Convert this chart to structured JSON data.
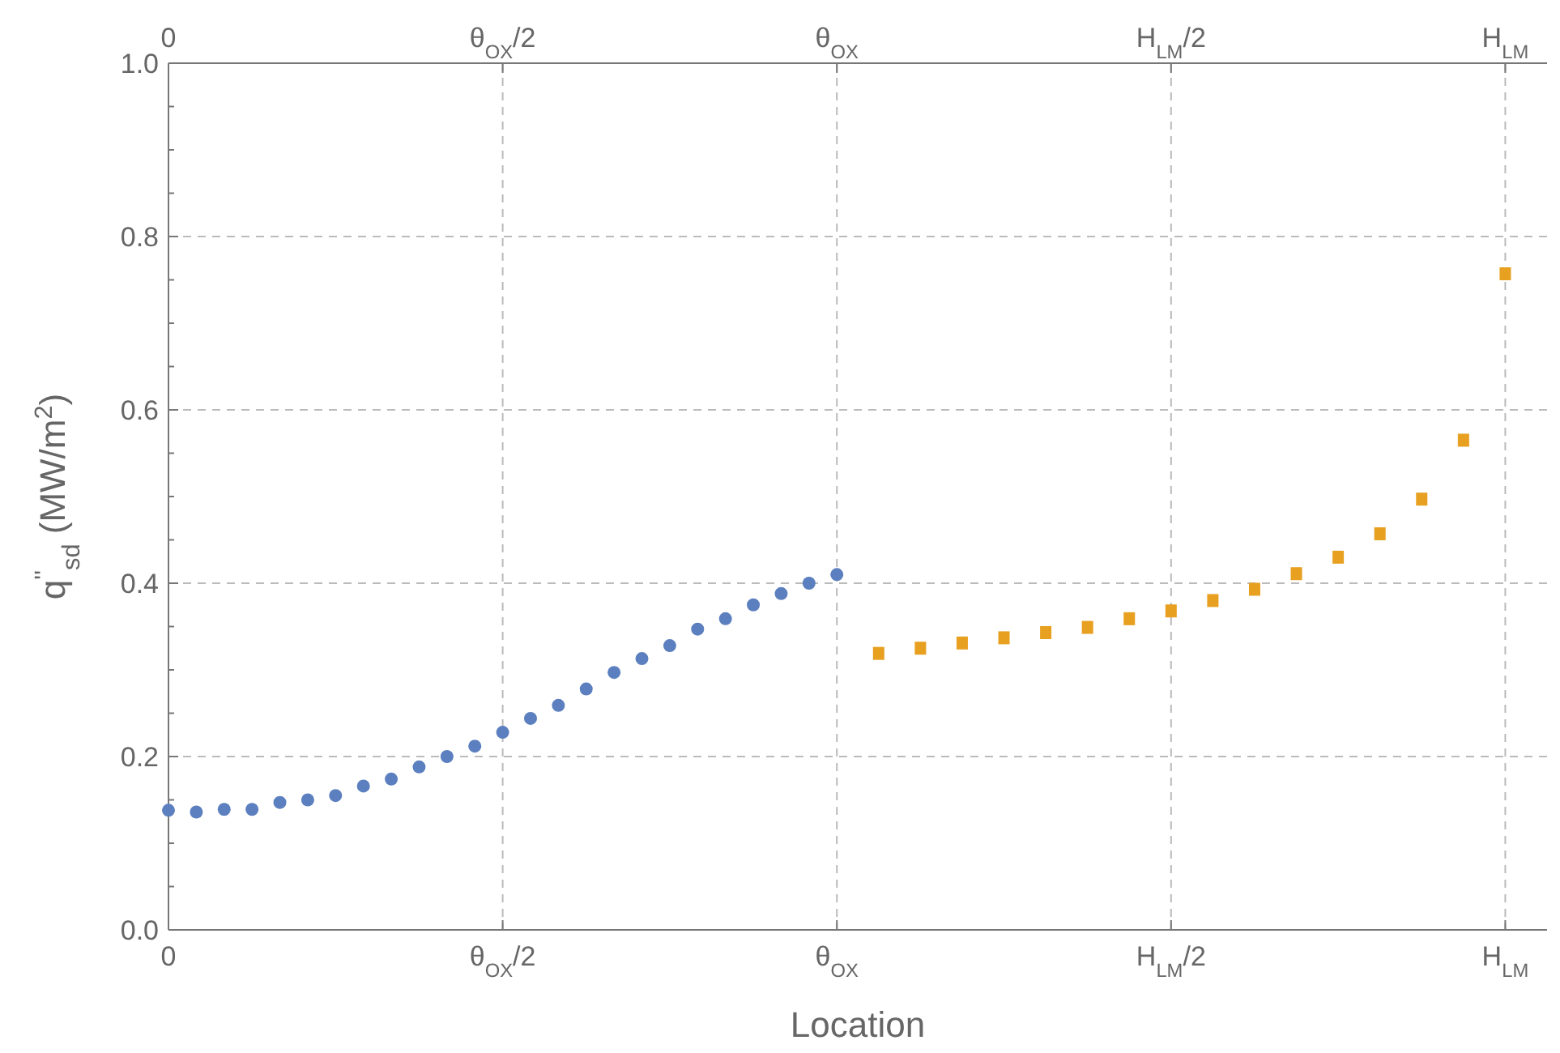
{
  "chart_data": {
    "type": "scatter",
    "xlabel": "Location",
    "ylabel": "q$^{''}$$_{sd}$ (MW/m$^{2}$)",
    "categories": [
      "0",
      null,
      null,
      null,
      null,
      null,
      null,
      null,
      null,
      null,
      null,
      null,
      null,
      null,
      null,
      null,
      null,
      null,
      null,
      null,
      null,
      null,
      null,
      null,
      "θ$_{OX}$/2",
      null,
      null,
      null,
      null,
      null,
      null,
      null,
      null,
      null,
      null,
      null,
      null,
      null,
      null,
      null,
      null,
      null,
      null,
      null,
      null,
      null,
      null,
      null,
      "θ$_{OX}$",
      null,
      null,
      null,
      null,
      null,
      null,
      null,
      null,
      null,
      null,
      null,
      null,
      null,
      null,
      null,
      null,
      null,
      null,
      null,
      null,
      null,
      null,
      null,
      "H$_{LM}$/2",
      null,
      null,
      null,
      null,
      null,
      null,
      null,
      null,
      null,
      null,
      null,
      null,
      null,
      null,
      null,
      null,
      null,
      null,
      null,
      null,
      null,
      null,
      null,
      "H$_{LM}$",
      null,
      null,
      null
    ],
    "ylim": [
      0,
      1
    ],
    "yticks": [
      {
        "value": 0,
        "label": "0.0"
      },
      {
        "value": 0.05,
        "label": null
      },
      {
        "value": 0.1,
        "label": null
      },
      {
        "value": 0.15,
        "label": null
      },
      0.2,
      {
        "value": 0.25,
        "label": null
      },
      {
        "value": 0.3,
        "label": null
      },
      {
        "value": 0.35,
        "label": null
      },
      0.4,
      {
        "value": 0.45,
        "label": null
      },
      {
        "value": 0.5,
        "label": null
      },
      {
        "value": 0.55,
        "label": null
      },
      0.6,
      {
        "value": 0.65,
        "label": null
      },
      {
        "value": 0.7,
        "label": null
      },
      {
        "value": 0.75,
        "label": null
      },
      0.8,
      {
        "value": 0.85,
        "label": null
      },
      {
        "value": 0.9,
        "label": null
      },
      {
        "value": 0.95,
        "label": null
      },
      {
        "value": 1,
        "label": "1.0"
      }
    ],
    "grid": true,
    "line_style": "dashed",
    "series": [
      {
        "color": "#5b7fbf",
        "marker": "circle",
        "values": [
          0.138,
          null,
          0.136,
          null,
          0.139,
          null,
          0.139,
          null,
          0.147,
          null,
          0.15,
          null,
          0.155,
          null,
          0.166,
          null,
          0.174,
          null,
          0.188,
          null,
          0.2,
          null,
          0.212,
          null,
          0.228,
          null,
          0.244,
          null,
          0.259,
          null,
          0.278,
          null,
          0.297,
          null,
          0.313,
          null,
          0.328,
          null,
          0.347,
          null,
          0.359,
          null,
          0.375,
          null,
          0.388,
          null,
          0.4,
          null,
          0.41,
          null,
          null,
          null,
          null,
          null,
          null,
          null,
          null,
          null,
          null,
          null,
          null,
          null,
          null,
          null,
          null,
          null,
          null,
          null,
          null,
          null,
          null,
          null,
          null,
          null,
          null,
          null,
          null,
          null,
          null,
          null,
          null,
          null,
          null,
          null,
          null,
          null,
          null,
          null,
          null,
          null,
          null,
          null,
          null,
          null,
          null,
          null,
          null,
          null,
          null,
          null
        ]
      },
      {
        "color": "#e8a020",
        "marker": "square",
        "values": [
          null,
          null,
          null,
          null,
          null,
          null,
          null,
          null,
          null,
          null,
          null,
          null,
          null,
          null,
          null,
          null,
          null,
          null,
          null,
          null,
          null,
          null,
          null,
          null,
          null,
          null,
          null,
          null,
          null,
          null,
          null,
          null,
          null,
          null,
          null,
          null,
          null,
          null,
          null,
          null,
          null,
          null,
          null,
          null,
          null,
          null,
          null,
          null,
          null,
          null,
          null,
          0.319,
          null,
          null,
          0.325,
          null,
          null,
          0.331,
          null,
          null,
          0.337,
          null,
          null,
          0.343,
          null,
          null,
          0.349,
          null,
          null,
          0.359,
          null,
          null,
          0.368,
          null,
          null,
          0.38,
          null,
          null,
          0.393,
          null,
          null,
          0.411,
          null,
          null,
          0.43,
          null,
          null,
          0.457,
          null,
          null,
          0.497,
          null,
          null,
          0.565,
          null,
          null,
          0.757,
          null,
          null,
          null
        ]
      }
    ]
  }
}
